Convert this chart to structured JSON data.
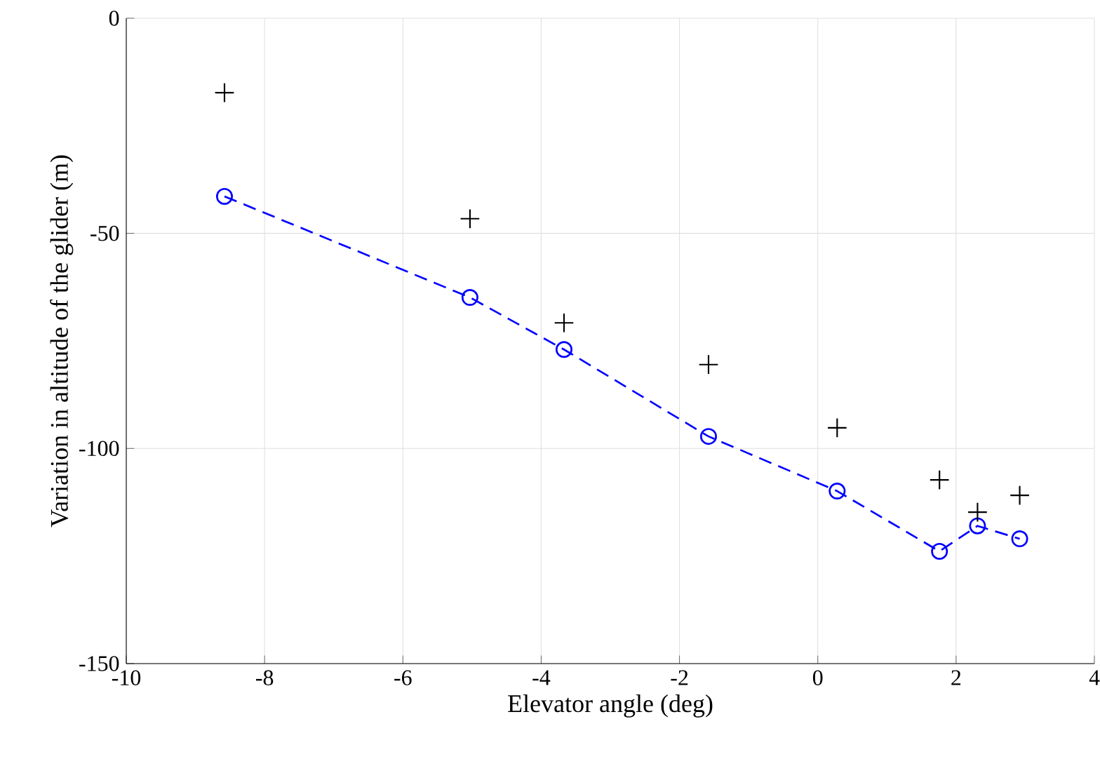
{
  "chart_data": {
    "type": "line",
    "xlabel": "Elevator angle (deg)",
    "ylabel": "Variation in altitude of the glider (m)",
    "xlim": [
      -10,
      4
    ],
    "xticks": [
      -10,
      -8,
      -6,
      -4,
      -2,
      0,
      2,
      4
    ],
    "ylim": [
      -150,
      0
    ],
    "yticks": [
      -150,
      -100,
      -50,
      0
    ],
    "grid": true,
    "series": [
      {
        "color": "#0000ff",
        "marker": "circle",
        "line_style": "dashed",
        "x": [
          -8.58,
          -5.03,
          -3.67,
          -1.58,
          0.28,
          1.76,
          2.31,
          2.92
        ],
        "values": [
          -41.4,
          -64.9,
          -77,
          -97.2,
          -109.9,
          -123.9,
          -118,
          -121
        ]
      },
      {
        "type": "scatter",
        "color": "#000000",
        "marker": "cross",
        "x": [
          -8.58,
          -5.03,
          -3.67,
          -1.58,
          0.28,
          1.76,
          2.31,
          2.92
        ],
        "values": [
          -17.3,
          -46.6,
          -70.8,
          -80.5,
          -95.2,
          -107.3,
          -114.8,
          -110.9
        ]
      }
    ]
  }
}
